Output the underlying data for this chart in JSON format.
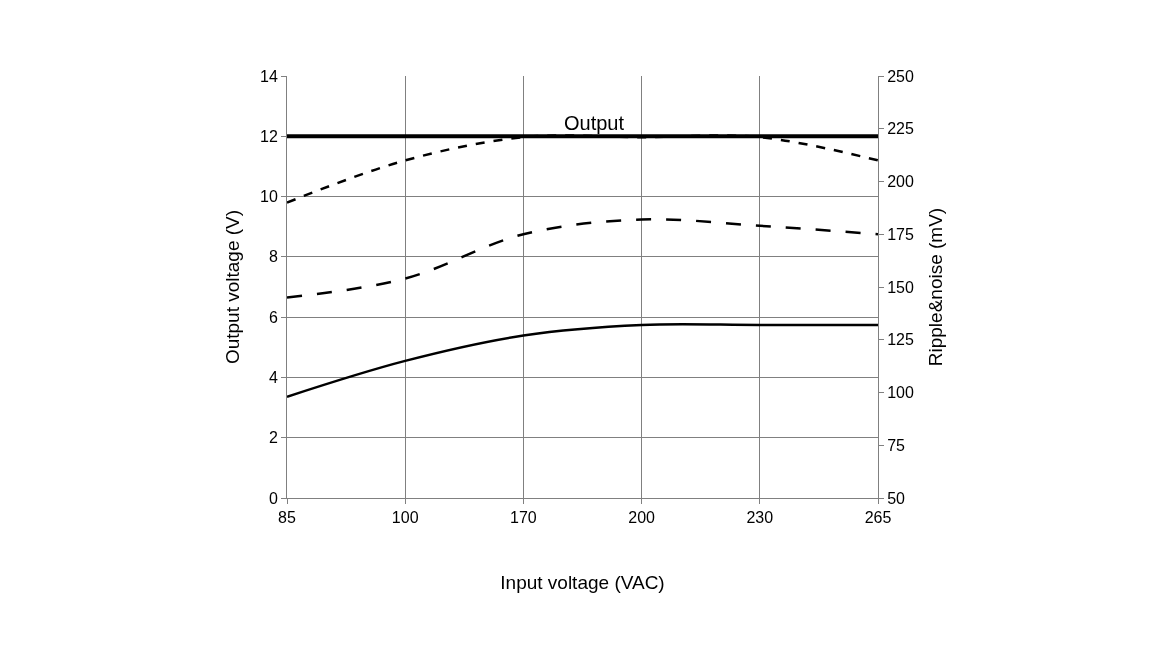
{
  "chart_data": {
    "type": "line",
    "xlabel": "Input voltage (VAC)",
    "ylabel": "Output voltage (V)",
    "y2label": "Ripple&noise (mV)",
    "categories": [
      "85",
      "100",
      "170",
      "200",
      "230",
      "265"
    ],
    "series": [
      {
        "color": "#000000",
        "values": [
          12,
          12,
          12,
          12,
          12,
          12
        ],
        "line_style": "solid"
      },
      {
        "color": "#000000",
        "values": [
          190,
          210,
          221,
          221,
          221,
          210
        ],
        "axis": "y2",
        "line_style": "dashed"
      },
      {
        "color": "#000000",
        "values": [
          145,
          154,
          175,
          182,
          179,
          175
        ],
        "axis": "y2",
        "line_style": "dashed"
      },
      {
        "color": "#000000",
        "values": [
          98,
          115,
          127,
          132,
          132,
          132
        ],
        "axis": "y2",
        "line_style": "solid"
      }
    ],
    "annotations": [
      {
        "text": "Output",
        "x": "200",
        "y": 12
      }
    ],
    "ylim": [
      0,
      14
    ],
    "yticks": [
      0,
      2,
      4,
      6,
      8,
      10,
      12,
      14
    ],
    "y2lim": [
      50,
      250
    ],
    "y2ticks": [
      50,
      75,
      100,
      125,
      150,
      175,
      200,
      225,
      250
    ],
    "grid": true,
    "marker": "none"
  }
}
